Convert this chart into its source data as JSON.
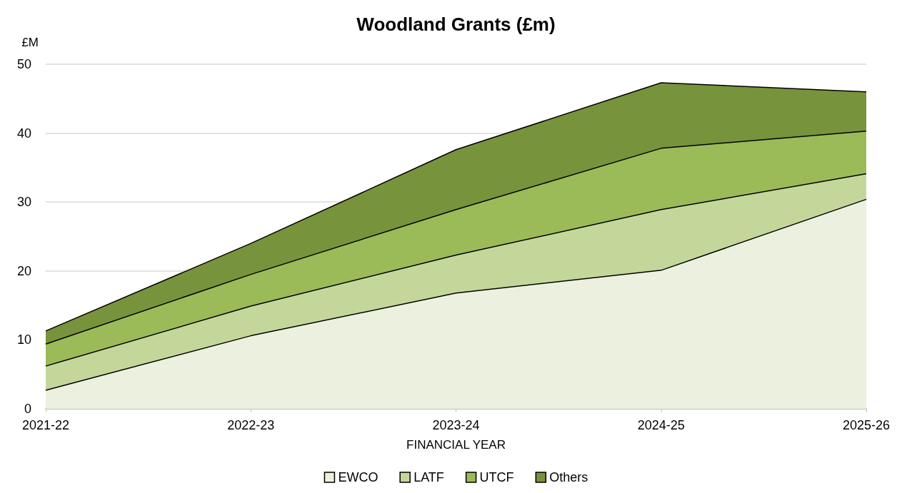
{
  "chart_data": {
    "type": "area",
    "title": "Woodland Grants (£m)",
    "ylabel": "£M",
    "xlabel": "FINANCIAL YEAR",
    "categories": [
      "2021-22",
      "2022-23",
      "2023-24",
      "2024-25",
      "2025-26"
    ],
    "stacked": true,
    "ylim": [
      0,
      50
    ],
    "yticks": [
      0,
      10,
      20,
      30,
      40,
      50
    ],
    "grid": "y",
    "legend": "bottom",
    "series": [
      {
        "name": "EWCO",
        "color": "#ebf1de",
        "values": [
          2.7,
          10.6,
          16.8,
          20.1,
          30.4
        ]
      },
      {
        "name": "LATF",
        "color": "#c4d79b",
        "values": [
          3.5,
          4.3,
          5.5,
          8.8,
          3.7
        ]
      },
      {
        "name": "UTCF",
        "color": "#9bbb59",
        "values": [
          3.2,
          4.6,
          6.6,
          8.9,
          6.2
        ]
      },
      {
        "name": "Others",
        "color": "#77933c",
        "values": [
          1.9,
          4.5,
          8.7,
          9.5,
          5.7
        ]
      }
    ]
  }
}
